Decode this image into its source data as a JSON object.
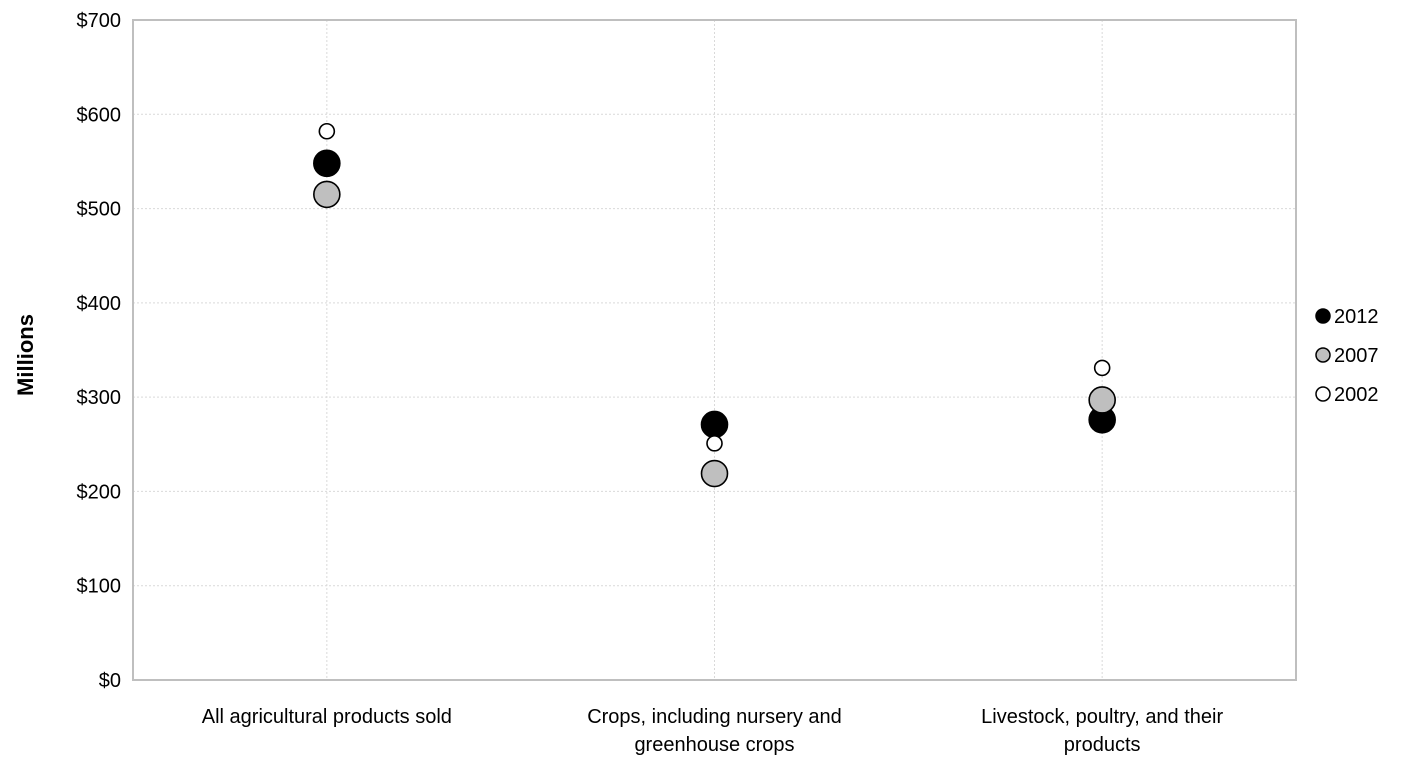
{
  "chart_data": {
    "type": "scatter",
    "title": "",
    "xlabel": "",
    "ylabel": "Millions",
    "categories": [
      [
        "All agricultural products sold"
      ],
      [
        "Crops, including nursery and",
        "greenhouse crops"
      ],
      [
        "Livestock, poultry, and their",
        "products"
      ]
    ],
    "ylim": [
      0,
      700
    ],
    "yticks": [
      0,
      100,
      200,
      300,
      400,
      500,
      600,
      700
    ],
    "ytick_labels": [
      "$0",
      "$100",
      "$200",
      "$300",
      "$400",
      "$500",
      "$600",
      "$700"
    ],
    "grid": true,
    "legend_position": "right",
    "series": [
      {
        "name": "2012",
        "color": "#000000",
        "marker": "large-circle",
        "values": [
          548,
          271,
          276
        ]
      },
      {
        "name": "2007",
        "color": "#bfbfbf",
        "marker": "large-circle",
        "values": [
          515,
          219,
          297
        ]
      },
      {
        "name": "2002",
        "color": "#ffffff",
        "marker": "small-circle",
        "values": [
          582,
          251,
          331
        ]
      }
    ]
  },
  "colors": {
    "axis": "#bfbfbf",
    "grid": "#d9d9d9",
    "marker_outline": "#000000"
  }
}
